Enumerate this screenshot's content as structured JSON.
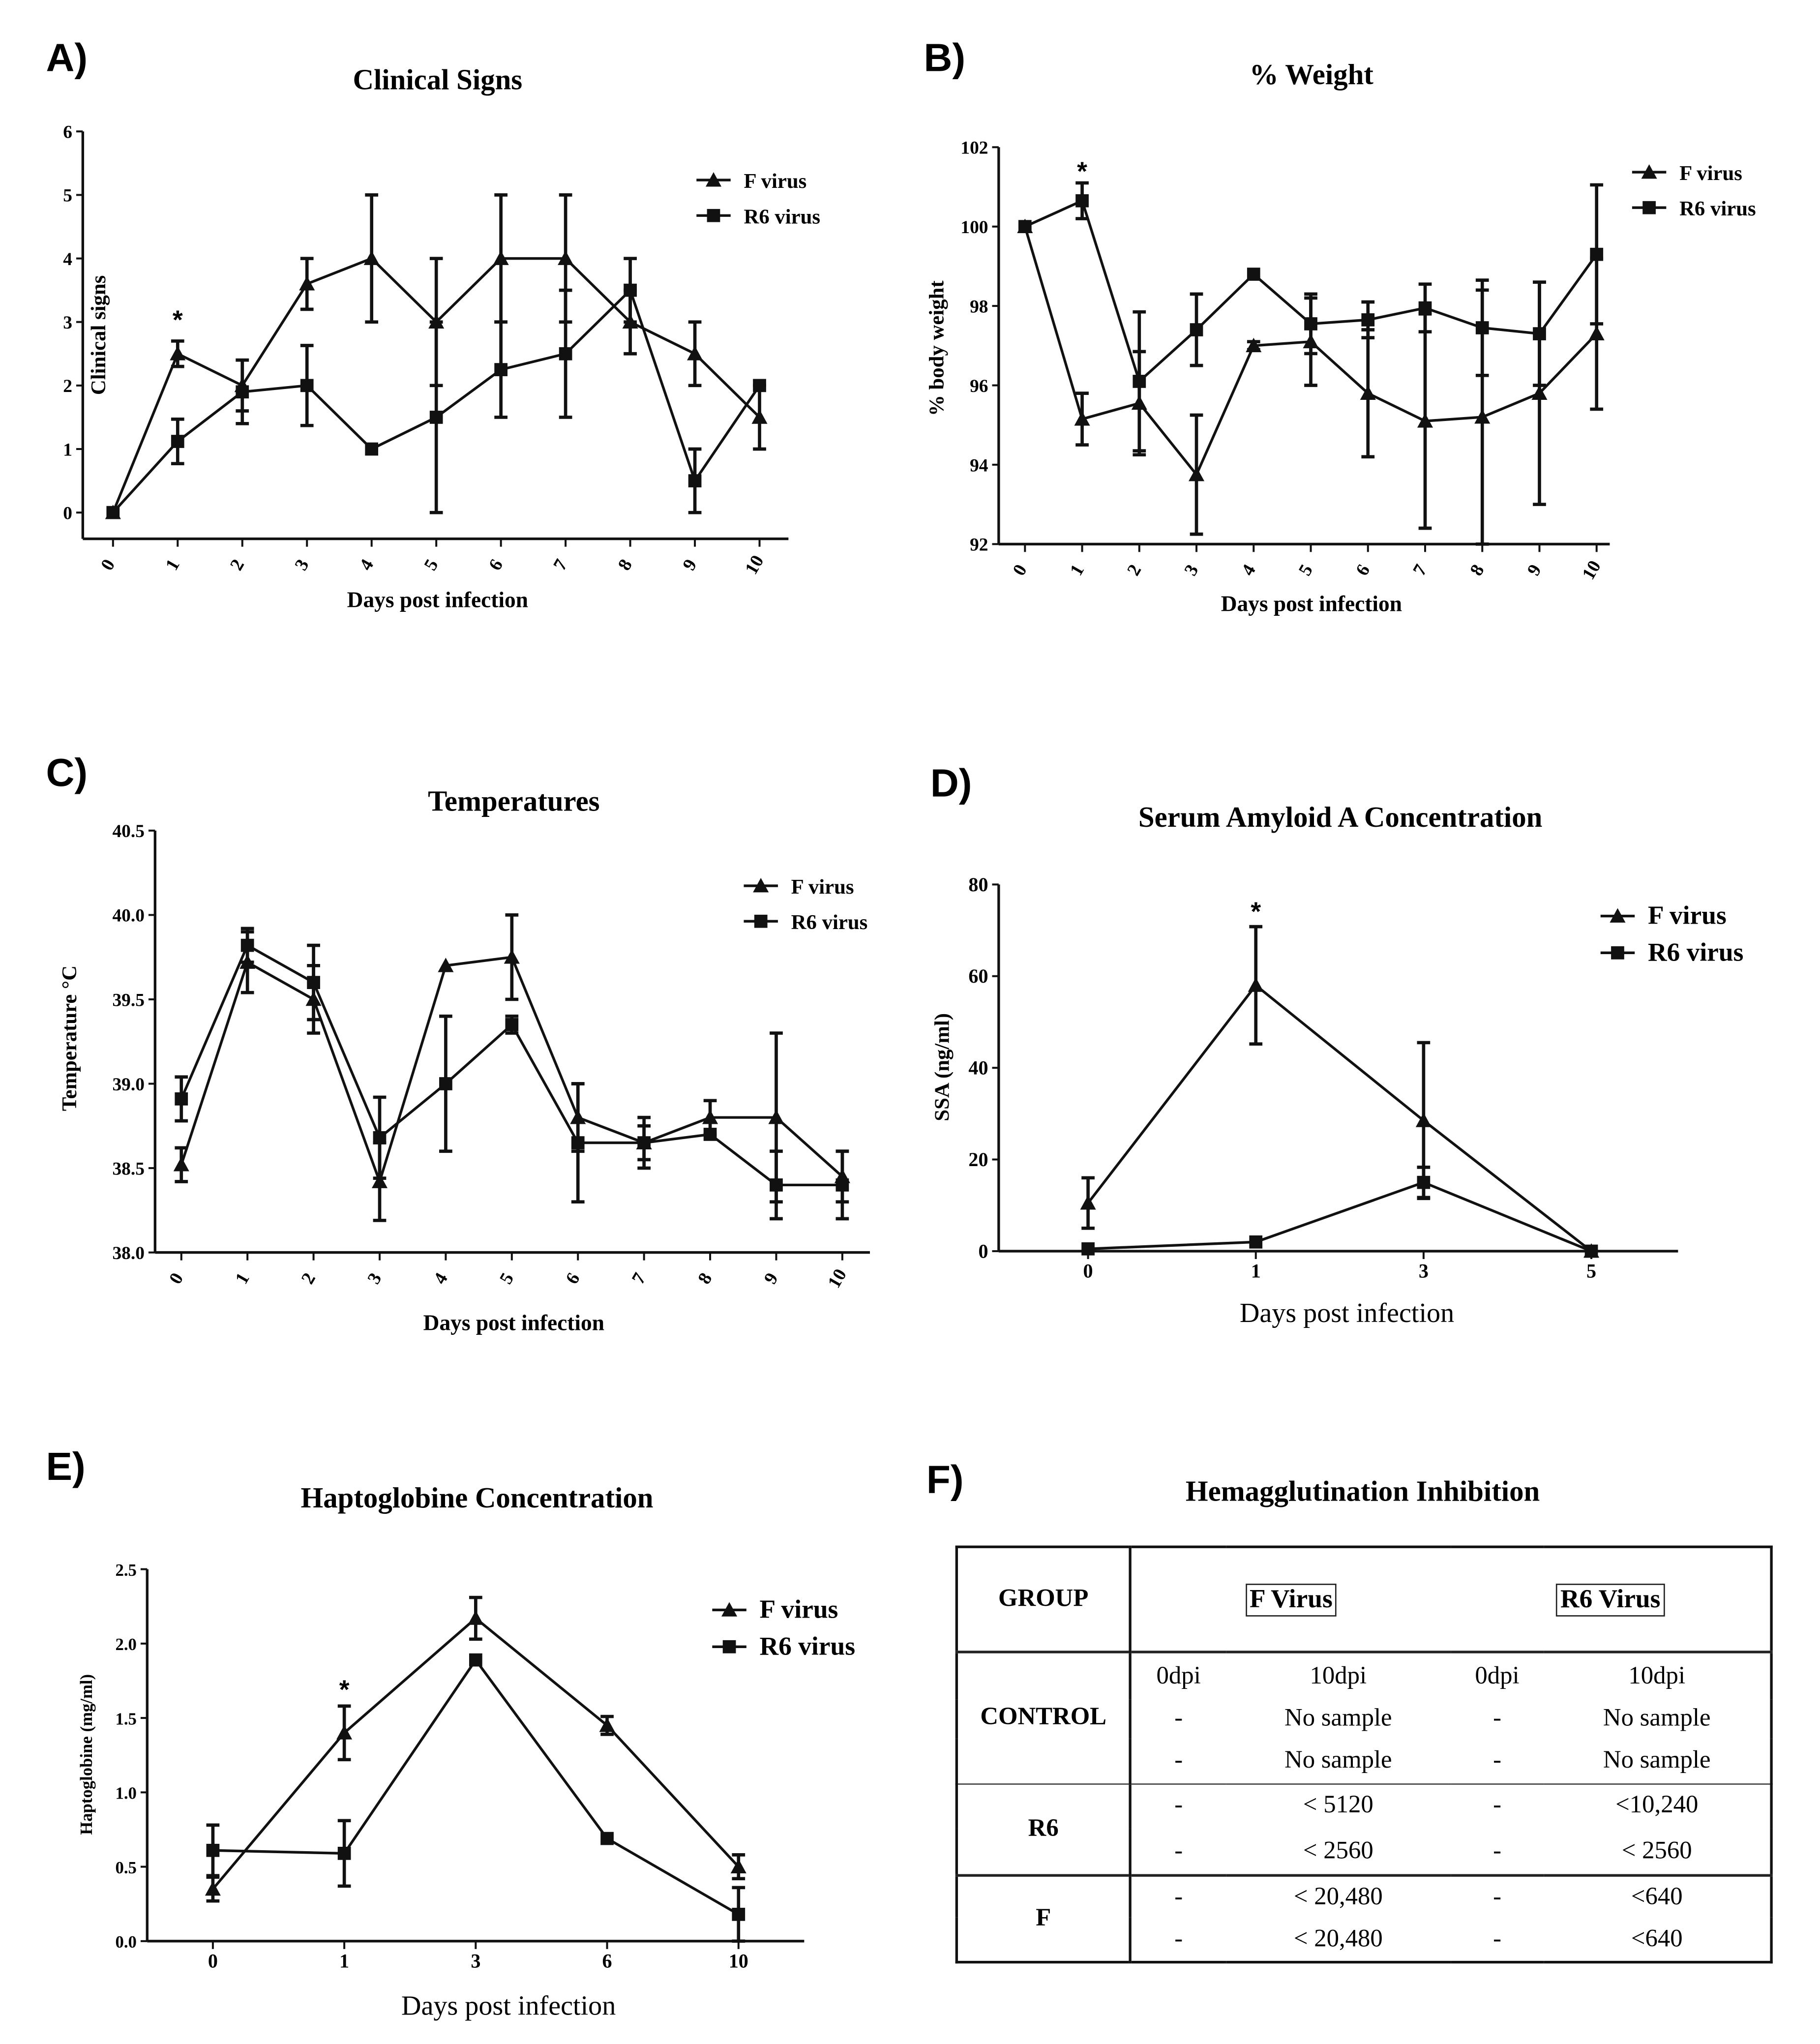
{
  "panels": [
    {
      "label": "A)",
      "title": "Clinical Signs"
    },
    {
      "label": "B)",
      "title": "% Weight"
    },
    {
      "label": "C)",
      "title": "Temperatures"
    },
    {
      "label": "D)",
      "title": "Serum Amyloid A Concentration"
    },
    {
      "label": "E)",
      "title": "Haptoglobine Concentration"
    },
    {
      "label": "F)",
      "title": "Hemagglutination Inhibition"
    }
  ],
  "chart_data": [
    {
      "type": "line",
      "title": "Clinical Signs",
      "xlabel": "Days post infection",
      "ylabel": "Clinical signs",
      "categories": [
        "0",
        "1",
        "2",
        "3",
        "4",
        "5",
        "6",
        "7",
        "8",
        "9",
        "10"
      ],
      "ylim": [
        0,
        6
      ],
      "yticks": [
        "0",
        "1",
        "2",
        "3",
        "4",
        "5",
        "6"
      ],
      "legend": "top-right",
      "grid": false,
      "series": [
        {
          "name": "F virus",
          "marker": "triangle",
          "values": [
            0,
            2.5,
            2,
            3.6,
            4,
            3,
            4,
            4,
            3,
            2.5,
            1.5
          ],
          "errors": [
            0,
            0.2,
            0.4,
            0.4,
            1,
            1,
            1,
            1,
            0.5,
            0.5,
            0.5
          ]
        },
        {
          "name": "R6 virus",
          "marker": "square",
          "values": [
            0,
            1.12,
            1.9,
            2,
            1,
            1.5,
            2.25,
            2.5,
            3.5,
            0.5,
            2
          ],
          "errors": [
            0,
            0.35,
            0.5,
            0.63,
            0,
            1.5,
            0.75,
            1,
            0.5,
            0.5,
            0
          ]
        }
      ],
      "annotations": [
        {
          "text": "*",
          "category": "1",
          "y": 3.1
        }
      ]
    },
    {
      "type": "line",
      "title": "% Weight",
      "xlabel": "Days post infection",
      "ylabel": "% body weight",
      "categories": [
        "0",
        "1",
        "2",
        "3",
        "4",
        "5",
        "6",
        "7",
        "8",
        "9",
        "10"
      ],
      "ylim": [
        92,
        102
      ],
      "yticks": [
        "92",
        "94",
        "96",
        "98",
        "100",
        "102"
      ],
      "legend": "top-right",
      "grid": false,
      "series": [
        {
          "name": "F virus",
          "marker": "triangle",
          "values": [
            100,
            95.15,
            95.55,
            93.75,
            97,
            97.1,
            95.8,
            95.1,
            95.2,
            95.8,
            97.3
          ],
          "errors": [
            0,
            0.65,
            1.3,
            1.5,
            0.1,
            1.1,
            1.6,
            2.7,
            3.2,
            2.8,
            1.9
          ]
        },
        {
          "name": "R6 virus",
          "marker": "square",
          "values": [
            100,
            100.65,
            96.1,
            97.4,
            98.8,
            97.55,
            97.65,
            97.95,
            97.45,
            97.3,
            99.3
          ],
          "errors": [
            0,
            0.45,
            1.75,
            0.9,
            0,
            0.75,
            0.45,
            0.6,
            1.2,
            1.3,
            1.75
          ]
        }
      ],
      "annotations": [
        {
          "text": "*",
          "category": "1",
          "y": 101.5
        }
      ]
    },
    {
      "type": "line",
      "title": "Temperatures",
      "xlabel": "Days post infection",
      "ylabel": "Temperature °C",
      "categories": [
        "0",
        "1",
        "2",
        "3",
        "4",
        "5",
        "6",
        "7",
        "8",
        "9",
        "10"
      ],
      "ylim": [
        38,
        40.5
      ],
      "yticks": [
        "38.0",
        "38.5",
        "39.0",
        "39.5",
        "40.0",
        "40.5"
      ],
      "legend": "top-right",
      "grid": false,
      "series": [
        {
          "name": "F virus",
          "marker": "triangle",
          "values": [
            38.52,
            39.72,
            39.5,
            38.42,
            39.7,
            39.75,
            38.8,
            38.65,
            38.8,
            38.8,
            38.45
          ],
          "errors": [
            0.1,
            0.18,
            0.2,
            0.23,
            0,
            0.25,
            0.2,
            0.15,
            0.1,
            0.5,
            0.15
          ]
        },
        {
          "name": "R6 virus",
          "marker": "square",
          "values": [
            38.91,
            39.82,
            39.6,
            38.68,
            39.0,
            39.35,
            38.65,
            38.65,
            38.7,
            38.4,
            38.4
          ],
          "errors": [
            0.13,
            0.1,
            0.22,
            0.24,
            0.4,
            0.05,
            0.35,
            0.1,
            0,
            0.2,
            0.2
          ]
        }
      ],
      "annotations": []
    },
    {
      "type": "line",
      "title": "Serum Amyloid A Concentration",
      "xlabel": "Days post infection",
      "ylabel": "SSA (ng/ml)",
      "categories": [
        "0",
        "1",
        "3",
        "5"
      ],
      "ylim": [
        0,
        80
      ],
      "yticks": [
        "0",
        "20",
        "40",
        "60",
        "80"
      ],
      "legend": "top-right",
      "grid": false,
      "series": [
        {
          "name": "F virus",
          "marker": "triangle",
          "values": [
            10.5,
            58,
            28.5,
            0
          ],
          "errors": [
            5.5,
            12.8,
            17,
            0
          ]
        },
        {
          "name": "R6 virus",
          "marker": "square",
          "values": [
            0.5,
            2,
            15,
            0
          ],
          "errors": [
            0,
            0,
            3.3,
            0
          ]
        }
      ],
      "annotations": [
        {
          "text": "*",
          "category": "1",
          "y": 75
        }
      ]
    },
    {
      "type": "line",
      "title": "Haptoglobine Concentration",
      "xlabel": "Days post infection",
      "ylabel": "Haptoglobine (mg/ml)",
      "categories": [
        "0",
        "1",
        "3",
        "6",
        "10"
      ],
      "ylim": [
        0,
        2.5
      ],
      "yticks": [
        "0.0",
        "0.5",
        "1.0",
        "1.5",
        "2.0",
        "2.5"
      ],
      "legend": "top-right",
      "grid": false,
      "series": [
        {
          "name": "F virus",
          "marker": "triangle",
          "values": [
            0.35,
            1.4,
            2.17,
            1.45,
            0.5
          ],
          "errors": [
            0.08,
            0.18,
            0.14,
            0.06,
            0.08
          ]
        },
        {
          "name": "R6 virus",
          "marker": "square",
          "values": [
            0.61,
            0.59,
            1.89,
            0.69,
            0.18
          ],
          "errors": [
            0.17,
            0.22,
            0,
            0,
            0.18
          ]
        }
      ],
      "annotations": [
        {
          "text": "*",
          "category": "1",
          "y": 1.72
        }
      ]
    },
    {
      "type": "table",
      "title": "Hemagglutination Inhibition",
      "header": {
        "group": "GROUP",
        "f_virus": "F Virus",
        "r6_virus": "R6 Virus"
      },
      "subheaders": [
        "0dpi",
        "10dpi",
        "0dpi",
        "10dpi"
      ],
      "groups": [
        {
          "name": "CONTROL",
          "rows": [
            [
              "-",
              "No sample",
              "-",
              "No sample"
            ],
            [
              "-",
              "No sample",
              "-",
              "No sample"
            ]
          ]
        },
        {
          "name": "R6",
          "rows": [
            [
              "-",
              "< 5120",
              "-",
              "<10,240"
            ],
            [
              "-",
              "< 2560",
              "-",
              "< 2560"
            ]
          ]
        },
        {
          "name": "F",
          "rows": [
            [
              "-",
              "< 20,480",
              "-",
              "<640"
            ],
            [
              "-",
              "< 20,480",
              "-",
              "<640"
            ]
          ]
        }
      ]
    }
  ]
}
